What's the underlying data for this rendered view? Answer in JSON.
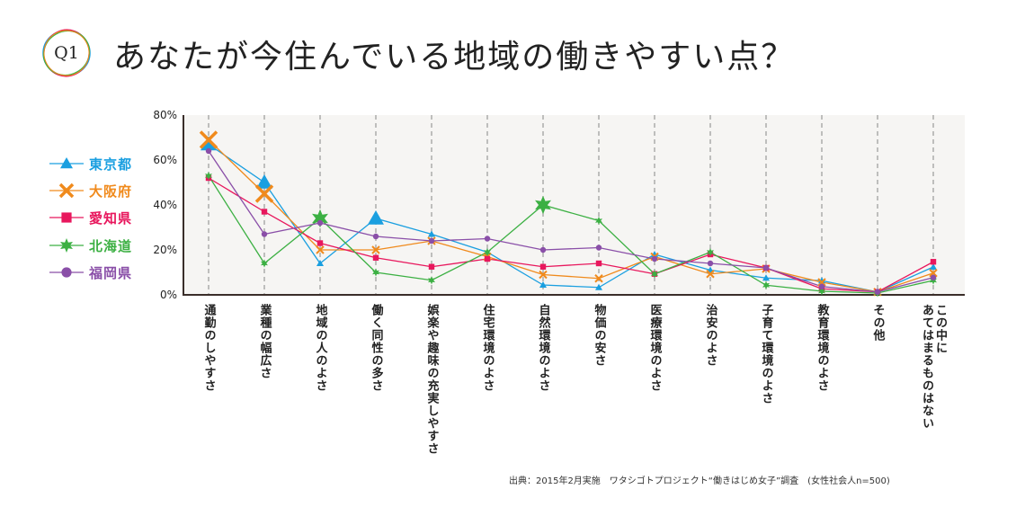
{
  "header": {
    "badge": "Q1",
    "title": "あなたが今住んでいる地域の働きやすい点？"
  },
  "chart_data": {
    "type": "line",
    "title": "あなたが今住んでいる地域の働きやすい点？",
    "xlabel": "",
    "ylabel": "",
    "ylim": [
      0,
      80
    ],
    "yticks": [
      "0%",
      "20%",
      "40%",
      "60%",
      "80%"
    ],
    "ytick_values": [
      0,
      20,
      40,
      60,
      80
    ],
    "grid": "vertical dashed",
    "legend_position": "left",
    "categories": [
      "通勤のしやすさ",
      "業種の幅広さ",
      "地域の人のよさ",
      "働く同性の多さ",
      "娯楽や趣味の充実しやすさ",
      "住宅環境のよさ",
      "自然環境のよさ",
      "物価の安さ",
      "医療環境のよさ",
      "治安のよさ",
      "子育て環境のよさ",
      "教育環境のよさ",
      "その他",
      "この中に\nあてはまるものはない"
    ],
    "series": [
      {
        "name": "東京都",
        "color": "#1a9fe0",
        "marker": "triangle",
        "highlight": [
          0,
          1,
          3
        ],
        "values": [
          67,
          50,
          14,
          34,
          27,
          19,
          4.4,
          3.3,
          18,
          11,
          7.5,
          6.3,
          1.3,
          12.4
        ]
      },
      {
        "name": "大阪府",
        "color": "#f08a1c",
        "marker": "x",
        "highlight": [
          0,
          1
        ],
        "values": [
          69,
          45,
          20,
          20,
          24,
          17,
          9,
          7.3,
          17,
          9.3,
          11.6,
          5.6,
          1.3,
          9.7
        ]
      },
      {
        "name": "愛知県",
        "color": "#e8175d",
        "marker": "square",
        "highlight": [],
        "values": [
          52,
          37,
          23,
          16.5,
          12.5,
          16,
          12.5,
          14,
          9.3,
          18,
          12,
          2.7,
          1.3,
          14.7
        ]
      },
      {
        "name": "北海道",
        "color": "#3cb043",
        "marker": "star",
        "highlight": [
          2,
          6
        ],
        "values": [
          53,
          14,
          34,
          10,
          6.5,
          19,
          40,
          33,
          9.3,
          19,
          4.3,
          1.6,
          0.8,
          6.4
        ]
      },
      {
        "name": "福岡県",
        "color": "#8a4fa8",
        "marker": "circle",
        "highlight": [],
        "values": [
          64,
          27,
          32,
          26,
          24,
          25,
          20,
          21,
          16,
          14,
          12,
          3.7,
          1.3,
          7.7
        ]
      }
    ]
  },
  "footer": {
    "source": "出典：2015年2月実施　ワタシゴトプロジェクト“働きはじめ女子”調査　(女性社会人n=500)"
  }
}
